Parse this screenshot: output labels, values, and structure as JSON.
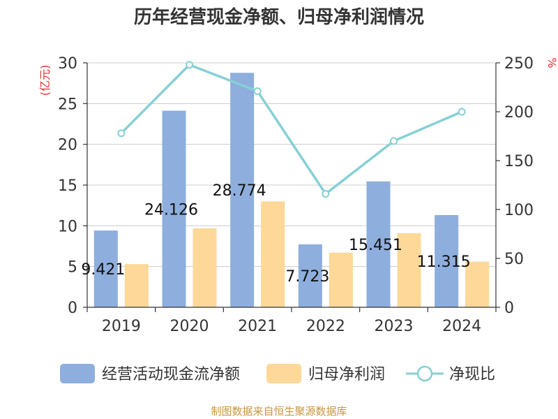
{
  "chart_data": {
    "type": "bar",
    "title": "历年经营现金净额、归母净利润情况",
    "categories": [
      "2019",
      "2020",
      "2021",
      "2022",
      "2023",
      "2024"
    ],
    "series": [
      {
        "name": "经营活动现金流净额",
        "type": "bar",
        "axis": "left",
        "color": "#8eaedd",
        "values": [
          9.421,
          24.126,
          28.774,
          7.723,
          15.451,
          11.315
        ],
        "labels": [
          "9.421",
          "24.126",
          "28.774",
          "7.723",
          "15.451",
          "11.315"
        ]
      },
      {
        "name": "归母净利润",
        "type": "bar",
        "axis": "left",
        "color": "#fdd898",
        "values": [
          5.3,
          9.7,
          13.0,
          6.7,
          9.1,
          5.6
        ]
      },
      {
        "name": "净现比",
        "type": "line",
        "axis": "right",
        "color": "#86d0d4",
        "values": [
          178,
          248,
          221,
          116,
          170,
          200
        ]
      }
    ],
    "y_left": {
      "unit": "(亿元)",
      "min": 0,
      "max": 30,
      "ticks": [
        0,
        5,
        10,
        15,
        20,
        25,
        30
      ]
    },
    "y_right": {
      "unit": "%",
      "min": 0,
      "max": 250,
      "ticks": [
        0,
        50,
        100,
        150,
        200,
        250
      ]
    },
    "grid": true,
    "legend": "bottom"
  },
  "source": "制图数据来自恒生聚源数据库"
}
